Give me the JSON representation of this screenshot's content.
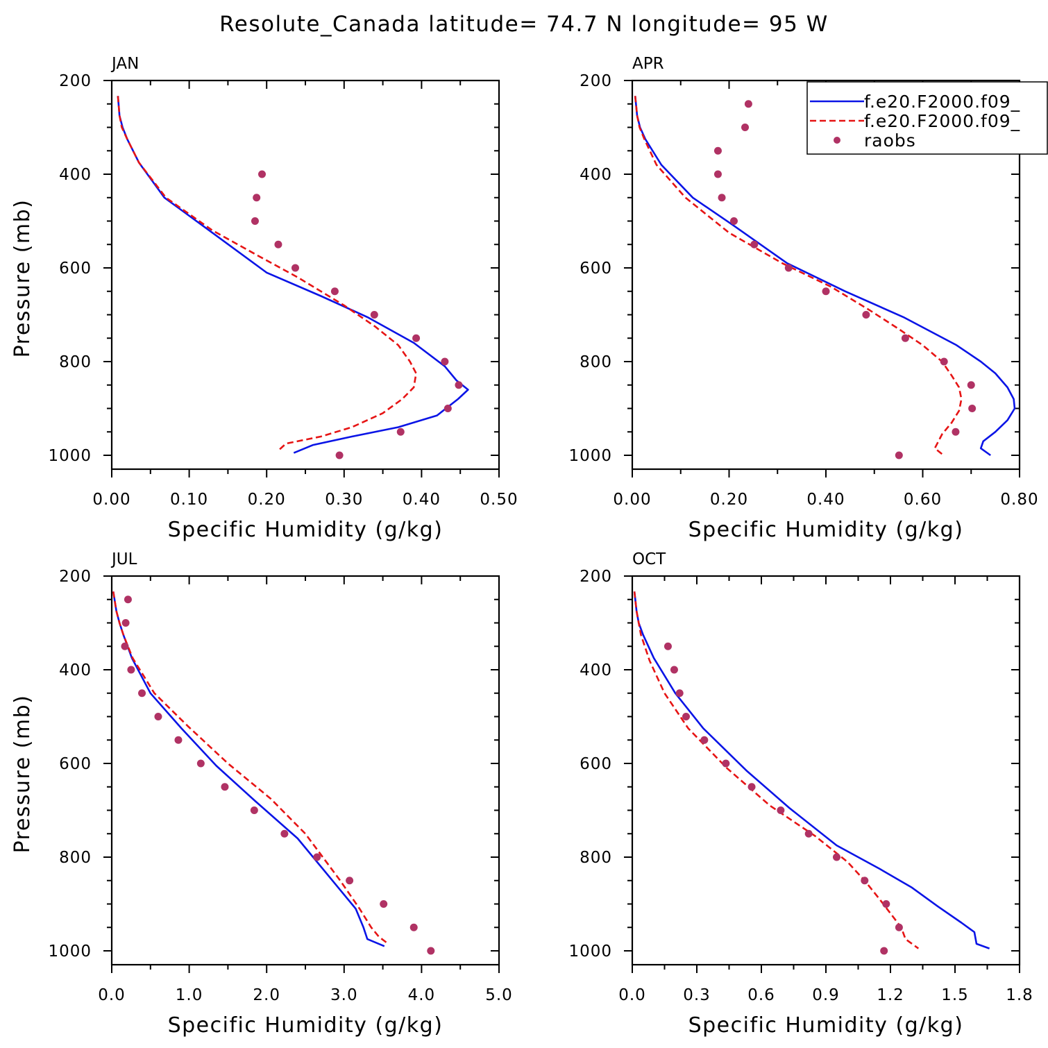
{
  "title": "Resolute_Canada  latitude= 74.7 N longitude= 95 W",
  "colors": {
    "model1": "#0a14e6",
    "model2": "#e61414",
    "raobs": "#b03264",
    "axes": "#000000"
  },
  "legend": {
    "placement": "top-right of APR panel",
    "entries": [
      {
        "label": "f.e20.F2000.f09_",
        "style": "solid-line",
        "color": "#0a14e6"
      },
      {
        "label": "f.e20.F2000.f09_",
        "style": "dashed-line",
        "color": "#e61414"
      },
      {
        "label": "raobs",
        "style": "marker",
        "color": "#b03264"
      }
    ]
  },
  "chart_data": [
    {
      "type": "line",
      "panel": "JAN",
      "xlabel": "Specific Humidity (g/kg)",
      "ylabel": "Pressure (mb)",
      "xlim": [
        0,
        0.5
      ],
      "ylim": [
        1000,
        200
      ],
      "y_inverted": true,
      "xticks": [
        0,
        0.1,
        0.2,
        0.3,
        0.4,
        0.5
      ],
      "xtick_labels": [
        "0.00",
        "0.10",
        "0.20",
        "0.30",
        "0.40",
        "0.50"
      ],
      "yticks": [
        200,
        400,
        600,
        800,
        1000
      ],
      "ytick_labels": [
        "200",
        "400",
        "600",
        "800",
        "1000"
      ],
      "series": [
        {
          "style": "solid",
          "color": "#0a14e6",
          "x": [
            0.008,
            0.01,
            0.014,
            0.02,
            0.035,
            0.068,
            0.13,
            0.2,
            0.27,
            0.33,
            0.39,
            0.43,
            0.445,
            0.46,
            0.447,
            0.42,
            0.37,
            0.31,
            0.26,
            0.235
          ],
          "y": [
            233,
            275,
            300,
            325,
            375,
            450,
            525,
            610,
            660,
            705,
            760,
            810,
            840,
            860,
            880,
            915,
            940,
            960,
            978,
            995
          ]
        },
        {
          "style": "dashed",
          "color": "#e61414",
          "x": [
            0.008,
            0.01,
            0.013,
            0.02,
            0.035,
            0.07,
            0.13,
            0.19,
            0.24,
            0.3,
            0.34,
            0.37,
            0.385,
            0.393,
            0.39,
            0.375,
            0.35,
            0.31,
            0.27,
            0.225,
            0.215
          ],
          "y": [
            233,
            275,
            300,
            325,
            375,
            450,
            520,
            575,
            620,
            680,
            725,
            765,
            800,
            825,
            855,
            880,
            910,
            940,
            960,
            975,
            990
          ]
        }
      ],
      "points": {
        "name": "raobs",
        "color": "#b03264",
        "x": [
          0.194,
          0.187,
          0.185,
          0.215,
          0.237,
          0.288,
          0.339,
          0.393,
          0.43,
          0.448,
          0.434,
          0.373,
          0.294
        ],
        "y": [
          400,
          450,
          500,
          550,
          600,
          650,
          700,
          750,
          800,
          850,
          900,
          950,
          1000
        ]
      }
    },
    {
      "type": "line",
      "panel": "APR",
      "xlabel": "Specific Humidity (g/kg)",
      "ylabel": "",
      "xlim": [
        0,
        0.8
      ],
      "ylim": [
        1000,
        200
      ],
      "y_inverted": true,
      "xticks": [
        0,
        0.2,
        0.4,
        0.6,
        0.8
      ],
      "xtick_labels": [
        "0.00",
        "0.20",
        "0.40",
        "0.60",
        "0.80"
      ],
      "yticks": [
        200,
        400,
        600,
        800,
        1000
      ],
      "ytick_labels": [
        "200",
        "400",
        "600",
        "800",
        "1000"
      ],
      "series": [
        {
          "style": "solid",
          "color": "#0a14e6",
          "x": [
            0.006,
            0.01,
            0.016,
            0.027,
            0.06,
            0.125,
            0.21,
            0.32,
            0.44,
            0.56,
            0.67,
            0.72,
            0.75,
            0.775,
            0.788,
            0.79,
            0.775,
            0.75,
            0.725,
            0.72,
            0.74
          ],
          "y": [
            233,
            275,
            300,
            325,
            380,
            450,
            510,
            590,
            650,
            705,
            765,
            800,
            825,
            855,
            880,
            900,
            925,
            950,
            970,
            985,
            1000
          ]
        },
        {
          "style": "dashed",
          "color": "#e61414",
          "x": [
            0.006,
            0.01,
            0.015,
            0.025,
            0.05,
            0.11,
            0.2,
            0.31,
            0.41,
            0.49,
            0.55,
            0.6,
            0.64,
            0.66,
            0.675,
            0.68,
            0.675,
            0.66,
            0.64,
            0.625,
            0.643
          ],
          "y": [
            233,
            275,
            300,
            325,
            380,
            450,
            525,
            590,
            640,
            690,
            730,
            765,
            800,
            830,
            855,
            880,
            905,
            930,
            955,
            985,
            1000
          ]
        }
      ],
      "points": {
        "name": "raobs",
        "color": "#b03264",
        "x": [
          0.24,
          0.233,
          0.177,
          0.177,
          0.185,
          0.21,
          0.252,
          0.323,
          0.4,
          0.483,
          0.564,
          0.644,
          0.7,
          0.702,
          0.668,
          0.551
        ],
        "y": [
          250,
          300,
          350,
          400,
          450,
          500,
          550,
          600,
          650,
          700,
          750,
          800,
          850,
          900,
          950,
          1000
        ]
      }
    },
    {
      "type": "line",
      "panel": "JUL",
      "xlabel": "Specific Humidity (g/kg)",
      "ylabel": "Pressure (mb)",
      "xlim": [
        0,
        5.0
      ],
      "ylim": [
        1000,
        200
      ],
      "y_inverted": true,
      "xticks": [
        0,
        1,
        2,
        3,
        4,
        5
      ],
      "xtick_labels": [
        "0.0",
        "1.0",
        "2.0",
        "3.0",
        "4.0",
        "5.0"
      ],
      "yticks": [
        200,
        400,
        600,
        800,
        1000
      ],
      "ytick_labels": [
        "200",
        "400",
        "600",
        "800",
        "1000"
      ],
      "series": [
        {
          "style": "solid",
          "color": "#0a14e6",
          "x": [
            0.02,
            0.06,
            0.1,
            0.15,
            0.26,
            0.5,
            0.9,
            1.35,
            1.85,
            2.4,
            2.95,
            3.15,
            3.25,
            3.3,
            3.52
          ],
          "y": [
            233,
            275,
            300,
            325,
            375,
            450,
            525,
            605,
            680,
            760,
            870,
            910,
            950,
            975,
            990
          ]
        },
        {
          "style": "dashed",
          "color": "#e61414",
          "x": [
            0.02,
            0.06,
            0.1,
            0.15,
            0.27,
            0.55,
            0.98,
            1.5,
            2.05,
            2.5,
            2.95,
            3.2,
            3.35,
            3.45,
            3.57
          ],
          "y": [
            233,
            275,
            300,
            325,
            375,
            450,
            520,
            600,
            675,
            750,
            850,
            910,
            950,
            970,
            985
          ]
        }
      ],
      "points": {
        "name": "raobs",
        "color": "#b03264",
        "x": [
          0.21,
          0.18,
          0.17,
          0.25,
          0.39,
          0.6,
          0.86,
          1.15,
          1.46,
          1.84,
          2.23,
          2.65,
          3.07,
          3.51,
          3.9,
          4.12
        ],
        "y": [
          250,
          300,
          350,
          400,
          450,
          500,
          550,
          600,
          650,
          700,
          750,
          800,
          850,
          900,
          950,
          1000
        ]
      }
    },
    {
      "type": "line",
      "panel": "OCT",
      "xlabel": "Specific Humidity (g/kg)",
      "ylabel": "",
      "xlim": [
        0,
        1.8
      ],
      "ylim": [
        1000,
        200
      ],
      "y_inverted": true,
      "xticks": [
        0,
        0.3,
        0.6,
        0.9,
        1.2,
        1.5,
        1.8
      ],
      "xtick_labels": [
        "0.0",
        "0.3",
        "0.6",
        "0.9",
        "1.2",
        "1.5",
        "1.8"
      ],
      "yticks": [
        200,
        400,
        600,
        800,
        1000
      ],
      "ytick_labels": [
        "200",
        "400",
        "600",
        "800",
        "1000"
      ],
      "series": [
        {
          "style": "solid",
          "color": "#0a14e6",
          "x": [
            0.01,
            0.02,
            0.03,
            0.05,
            0.1,
            0.2,
            0.33,
            0.53,
            0.73,
            0.95,
            1.15,
            1.3,
            1.42,
            1.53,
            1.59,
            1.6,
            1.66
          ],
          "y": [
            233,
            275,
            300,
            325,
            375,
            450,
            525,
            615,
            695,
            775,
            825,
            865,
            905,
            940,
            960,
            985,
            995
          ]
        },
        {
          "style": "dashed",
          "color": "#e61414",
          "x": [
            0.01,
            0.02,
            0.03,
            0.04,
            0.08,
            0.15,
            0.26,
            0.44,
            0.64,
            0.85,
            1.0,
            1.08,
            1.15,
            1.2,
            1.25,
            1.27,
            1.33
          ],
          "y": [
            233,
            275,
            300,
            325,
            380,
            450,
            525,
            610,
            690,
            755,
            810,
            850,
            890,
            920,
            950,
            975,
            995
          ]
        }
      ],
      "points": {
        "name": "raobs",
        "color": "#b03264",
        "x": [
          0.166,
          0.195,
          0.22,
          0.25,
          0.335,
          0.435,
          0.555,
          0.69,
          0.82,
          0.95,
          1.08,
          1.18,
          1.24,
          1.17
        ],
        "y": [
          350,
          400,
          450,
          500,
          550,
          600,
          650,
          700,
          750,
          800,
          850,
          900,
          950,
          1000
        ]
      }
    }
  ]
}
